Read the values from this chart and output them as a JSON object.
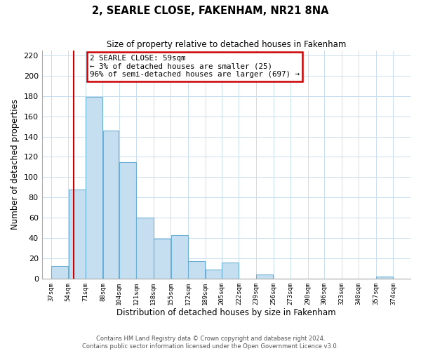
{
  "title": "2, SEARLE CLOSE, FAKENHAM, NR21 8NA",
  "subtitle": "Size of property relative to detached houses in Fakenham",
  "xlabel": "Distribution of detached houses by size in Fakenham",
  "ylabel": "Number of detached properties",
  "bar_left_edges": [
    37,
    54,
    71,
    88,
    104,
    121,
    138,
    155,
    172,
    189,
    205,
    222,
    239,
    256,
    273,
    290,
    306,
    323,
    340,
    357
  ],
  "bar_widths": [
    17,
    17,
    17,
    16,
    17,
    17,
    17,
    17,
    17,
    16,
    17,
    17,
    17,
    17,
    17,
    16,
    17,
    17,
    17,
    17
  ],
  "bar_heights": [
    12,
    88,
    179,
    146,
    115,
    60,
    39,
    43,
    17,
    9,
    16,
    0,
    4,
    0,
    0,
    0,
    0,
    0,
    0,
    2
  ],
  "bar_color": "#c5dff0",
  "bar_edge_color": "#6aafd6",
  "grid_color": "#c8dff0",
  "background_color": "#ffffff",
  "ylim": [
    0,
    225
  ],
  "yticks": [
    0,
    20,
    40,
    60,
    80,
    100,
    120,
    140,
    160,
    180,
    200,
    220
  ],
  "xtick_labels": [
    "37sqm",
    "54sqm",
    "71sqm",
    "88sqm",
    "104sqm",
    "121sqm",
    "138sqm",
    "155sqm",
    "172sqm",
    "189sqm",
    "205sqm",
    "222sqm",
    "239sqm",
    "256sqm",
    "273sqm",
    "290sqm",
    "306sqm",
    "323sqm",
    "340sqm",
    "357sqm",
    "374sqm"
  ],
  "xtick_positions": [
    37,
    54,
    71,
    88,
    104,
    121,
    138,
    155,
    172,
    189,
    205,
    222,
    239,
    256,
    273,
    290,
    306,
    323,
    340,
    357,
    374
  ],
  "xlim": [
    28,
    391
  ],
  "property_line_x": 59,
  "property_line_color": "#cc0000",
  "annotation_title": "2 SEARLE CLOSE: 59sqm",
  "annotation_line1": "← 3% of detached houses are smaller (25)",
  "annotation_line2": "96% of semi-detached houses are larger (697) →",
  "footer1": "Contains HM Land Registry data © Crown copyright and database right 2024.",
  "footer2": "Contains public sector information licensed under the Open Government Licence v3.0."
}
